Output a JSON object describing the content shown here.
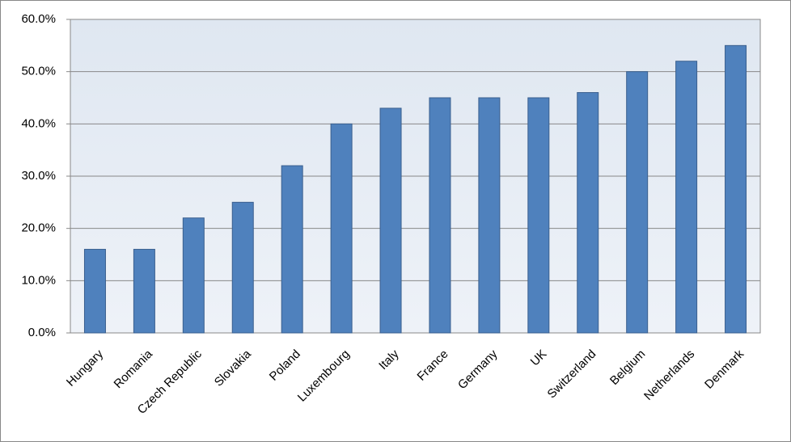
{
  "chart_data": {
    "type": "bar",
    "categories": [
      "Hungary",
      "Romania",
      "Czech Republic",
      "Slovakia",
      "Poland",
      "Luxembourg",
      "Italy",
      "France",
      "Germany",
      "UK",
      "Switzerland",
      "Belgium",
      "Netherlands",
      "Denmark"
    ],
    "values": [
      16,
      16,
      22,
      25,
      32,
      40,
      43,
      45,
      45,
      45,
      46,
      50,
      52,
      55
    ],
    "color": "#4f81bd",
    "ylim": [
      0,
      60
    ],
    "yticks": [
      {
        "value": 0,
        "label": "0.0%"
      },
      {
        "value": 10,
        "label": "10.0%"
      },
      {
        "value": 20,
        "label": "20.0%"
      },
      {
        "value": 30,
        "label": "30.0%"
      },
      {
        "value": 40,
        "label": "40.0%"
      },
      {
        "value": 50,
        "label": "50.0%"
      },
      {
        "value": 60,
        "label": "60.0%"
      }
    ],
    "grid": true
  }
}
